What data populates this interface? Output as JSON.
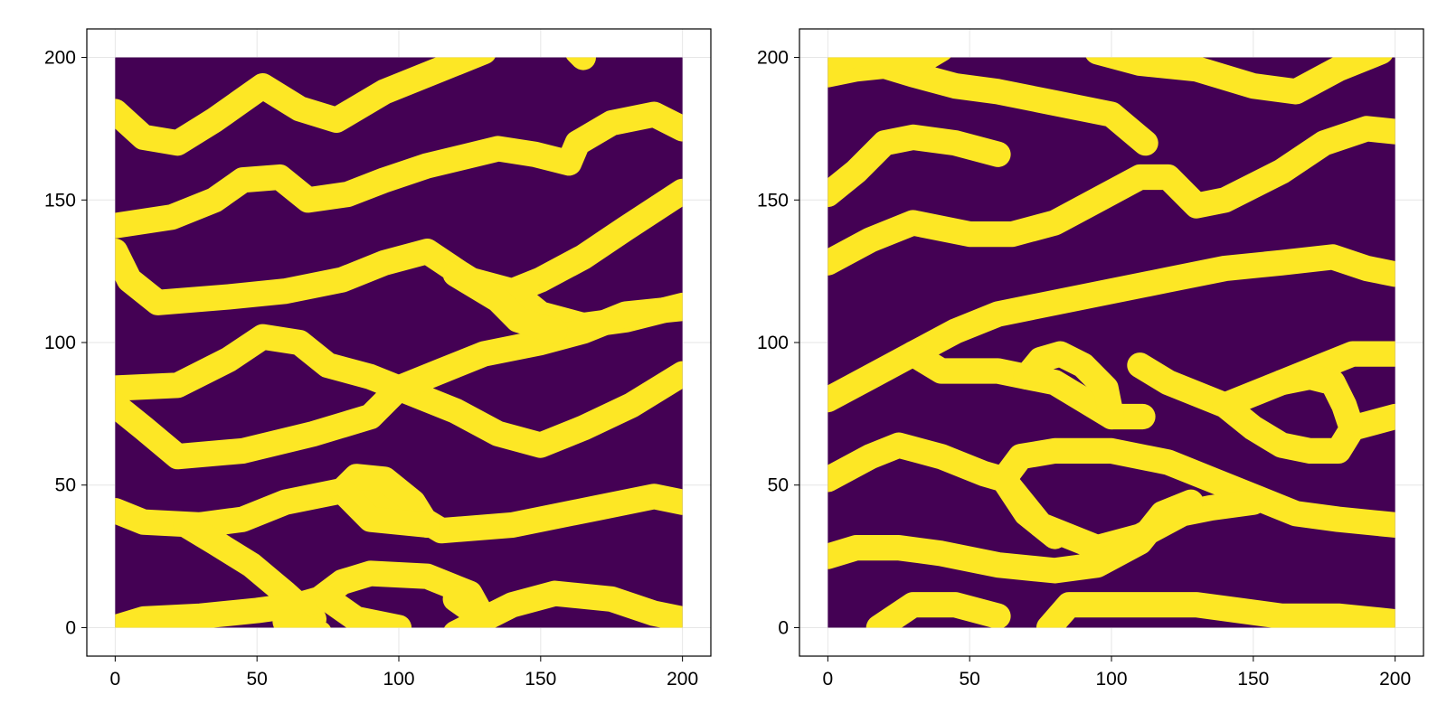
{
  "figure": {
    "background": "#ffffff"
  },
  "colors": {
    "background_facies": "#440154",
    "channel_facies": "#fde725"
  },
  "chart_data": [
    {
      "type": "heatmap",
      "title": "",
      "xlabel": "",
      "ylabel": "",
      "xlim": [
        -10,
        210
      ],
      "ylim": [
        -10,
        210
      ],
      "data_extent": {
        "x": [
          0,
          200
        ],
        "y": [
          0,
          200
        ]
      },
      "xticks": [
        0,
        50,
        100,
        150,
        200
      ],
      "yticks": [
        0,
        50,
        100,
        150,
        200
      ],
      "xtick_labels": [
        "0",
        "50",
        "100",
        "150",
        "200"
      ],
      "ytick_labels": [
        "0",
        "50",
        "100",
        "150",
        "200"
      ],
      "grid": true,
      "values_encoding": "binary: 0 = background (dark purple), 1 = channel (yellow)",
      "channel_width": 9,
      "channels": [
        [
          [
            0,
            181
          ],
          [
            10,
            172
          ],
          [
            22,
            170
          ],
          [
            35,
            178
          ],
          [
            52,
            190
          ],
          [
            65,
            182
          ],
          [
            78,
            178
          ],
          [
            95,
            188
          ],
          [
            115,
            196
          ],
          [
            130,
            202
          ]
        ],
        [
          [
            163,
            202
          ],
          [
            165,
            200
          ]
        ],
        [
          [
            0,
            141
          ],
          [
            20,
            144
          ],
          [
            35,
            150
          ],
          [
            45,
            157
          ],
          [
            58,
            158
          ],
          [
            68,
            150
          ],
          [
            82,
            152
          ],
          [
            95,
            157
          ],
          [
            110,
            162
          ],
          [
            135,
            168
          ],
          [
            148,
            166
          ],
          [
            160,
            163
          ],
          [
            163,
            170
          ],
          [
            175,
            177
          ],
          [
            190,
            180
          ],
          [
            200,
            175
          ]
        ],
        [
          [
            0,
            132
          ],
          [
            5,
            122
          ],
          [
            15,
            114
          ],
          [
            40,
            116
          ],
          [
            60,
            118
          ],
          [
            80,
            122
          ],
          [
            95,
            128
          ],
          [
            110,
            132
          ],
          [
            125,
            122
          ],
          [
            140,
            118
          ],
          [
            150,
            110
          ],
          [
            165,
            106
          ],
          [
            180,
            108
          ],
          [
            200,
            113
          ]
        ],
        [
          [
            0,
            84
          ],
          [
            22,
            85
          ],
          [
            40,
            94
          ],
          [
            52,
            102
          ],
          [
            65,
            100
          ],
          [
            75,
            92
          ],
          [
            90,
            88
          ],
          [
            105,
            82
          ],
          [
            120,
            76
          ],
          [
            135,
            68
          ],
          [
            150,
            64
          ],
          [
            165,
            70
          ],
          [
            182,
            78
          ],
          [
            200,
            89
          ]
        ],
        [
          [
            0,
            78
          ],
          [
            10,
            70
          ],
          [
            22,
            60
          ],
          [
            45,
            62
          ],
          [
            70,
            68
          ],
          [
            90,
            74
          ],
          [
            100,
            84
          ],
          [
            115,
            90
          ],
          [
            130,
            96
          ],
          [
            150,
            100
          ],
          [
            165,
            104
          ],
          [
            180,
            110
          ],
          [
            200,
            112
          ]
        ],
        [
          [
            122,
            124
          ],
          [
            135,
            116
          ],
          [
            150,
            122
          ],
          [
            165,
            130
          ],
          [
            180,
            140
          ],
          [
            200,
            153
          ]
        ],
        [
          [
            120,
            124
          ],
          [
            135,
            115
          ],
          [
            142,
            108
          ],
          [
            155,
            104
          ]
        ],
        [
          [
            0,
            41
          ],
          [
            10,
            37
          ],
          [
            30,
            36
          ],
          [
            45,
            38
          ],
          [
            60,
            44
          ],
          [
            80,
            48
          ],
          [
            95,
            46
          ],
          [
            115,
            34
          ],
          [
            140,
            36
          ],
          [
            170,
            42
          ],
          [
            190,
            46
          ],
          [
            200,
            44
          ]
        ],
        [
          [
            80,
            48
          ],
          [
            85,
            53
          ],
          [
            95,
            52
          ],
          [
            105,
            44
          ],
          [
            110,
            36
          ]
        ],
        [
          [
            80,
            48
          ],
          [
            90,
            38
          ],
          [
            110,
            36
          ]
        ],
        [
          [
            25,
            36
          ],
          [
            35,
            30
          ],
          [
            48,
            22
          ],
          [
            60,
            12
          ],
          [
            70,
            3
          ]
        ],
        [
          [
            0,
            0
          ],
          [
            10,
            3
          ],
          [
            30,
            4
          ],
          [
            50,
            6
          ],
          [
            65,
            8
          ],
          [
            72,
            10
          ],
          [
            80,
            16
          ],
          [
            90,
            19
          ],
          [
            110,
            18
          ],
          [
            125,
            12
          ],
          [
            130,
            3
          ],
          [
            140,
            8
          ],
          [
            155,
            12
          ],
          [
            175,
            10
          ],
          [
            190,
            5
          ],
          [
            200,
            3
          ]
        ],
        [
          [
            60,
            2
          ],
          [
            72,
            -2
          ]
        ],
        [
          [
            75,
            10
          ],
          [
            85,
            3
          ],
          [
            100,
            0
          ]
        ],
        [
          [
            120,
            10
          ],
          [
            130,
            3
          ],
          [
            120,
            -2
          ]
        ]
      ]
    },
    {
      "type": "heatmap",
      "title": "",
      "xlabel": "",
      "ylabel": "",
      "xlim": [
        -10,
        210
      ],
      "ylim": [
        -10,
        210
      ],
      "data_extent": {
        "x": [
          0,
          200
        ],
        "y": [
          0,
          200
        ]
      },
      "xticks": [
        0,
        50,
        100,
        150,
        200
      ],
      "yticks": [
        0,
        50,
        100,
        150,
        200
      ],
      "xtick_labels": [
        "0",
        "50",
        "100",
        "150",
        "200"
      ],
      "ytick_labels": [
        "0",
        "50",
        "100",
        "150",
        "200"
      ],
      "grid": true,
      "values_encoding": "binary: 0 = background (dark purple), 1 = channel (yellow)",
      "channel_width": 9,
      "channels": [
        [
          [
            0,
            194
          ],
          [
            10,
            196
          ],
          [
            20,
            197
          ],
          [
            30,
            194
          ],
          [
            45,
            190
          ],
          [
            60,
            188
          ],
          [
            80,
            184
          ],
          [
            100,
            180
          ],
          [
            112,
            170
          ]
        ],
        [
          [
            0,
            202
          ],
          [
            5,
            200
          ],
          [
            20,
            203
          ],
          [
            25,
            196
          ],
          [
            35,
            200
          ],
          [
            40,
            203
          ]
        ],
        [
          [
            95,
            202
          ],
          [
            110,
            198
          ],
          [
            130,
            196
          ],
          [
            150,
            190
          ],
          [
            165,
            188
          ],
          [
            180,
            196
          ],
          [
            195,
            202
          ]
        ],
        [
          [
            0,
            152
          ],
          [
            10,
            160
          ],
          [
            20,
            170
          ],
          [
            30,
            172
          ],
          [
            45,
            170
          ],
          [
            60,
            166
          ]
        ],
        [
          [
            0,
            128
          ],
          [
            15,
            136
          ],
          [
            30,
            142
          ],
          [
            50,
            138
          ],
          [
            65,
            138
          ],
          [
            80,
            142
          ],
          [
            95,
            150
          ],
          [
            110,
            158
          ],
          [
            120,
            158
          ],
          [
            130,
            148
          ],
          [
            140,
            150
          ],
          [
            160,
            160
          ],
          [
            175,
            170
          ],
          [
            190,
            175
          ],
          [
            200,
            174
          ]
        ],
        [
          [
            0,
            80
          ],
          [
            15,
            88
          ],
          [
            30,
            96
          ],
          [
            45,
            104
          ],
          [
            60,
            110
          ],
          [
            80,
            114
          ],
          [
            100,
            118
          ],
          [
            120,
            122
          ],
          [
            140,
            126
          ],
          [
            160,
            128
          ],
          [
            178,
            130
          ],
          [
            190,
            126
          ],
          [
            200,
            124
          ]
        ],
        [
          [
            30,
            96
          ],
          [
            40,
            90
          ],
          [
            60,
            90
          ],
          [
            70,
            88
          ],
          [
            80,
            86
          ],
          [
            90,
            80
          ],
          [
            100,
            74
          ],
          [
            111,
            74
          ]
        ],
        [
          [
            70,
            88
          ],
          [
            75,
            94
          ],
          [
            82,
            96
          ],
          [
            90,
            92
          ],
          [
            98,
            84
          ],
          [
            100,
            74
          ]
        ],
        [
          [
            110,
            92
          ],
          [
            120,
            86
          ],
          [
            130,
            82
          ],
          [
            140,
            78
          ],
          [
            150,
            70
          ],
          [
            160,
            64
          ],
          [
            170,
            62
          ],
          [
            180,
            62
          ],
          [
            185,
            70
          ],
          [
            200,
            74
          ]
        ],
        [
          [
            140,
            78
          ],
          [
            150,
            82
          ],
          [
            160,
            86
          ],
          [
            175,
            92
          ],
          [
            185,
            96
          ],
          [
            200,
            96
          ]
        ],
        [
          [
            160,
            86
          ],
          [
            170,
            88
          ],
          [
            178,
            86
          ],
          [
            182,
            78
          ],
          [
            184,
            72
          ]
        ],
        [
          [
            0,
            52
          ],
          [
            15,
            60
          ],
          [
            25,
            64
          ],
          [
            40,
            60
          ],
          [
            55,
            54
          ],
          [
            62,
            52
          ],
          [
            68,
            60
          ],
          [
            80,
            62
          ],
          [
            100,
            62
          ],
          [
            120,
            58
          ],
          [
            135,
            52
          ],
          [
            150,
            46
          ],
          [
            165,
            40
          ],
          [
            180,
            38
          ],
          [
            200,
            36
          ]
        ],
        [
          [
            62,
            52
          ],
          [
            70,
            40
          ],
          [
            80,
            32
          ]
        ],
        [
          [
            62,
            52
          ],
          [
            75,
            36
          ],
          [
            95,
            28
          ],
          [
            110,
            32
          ],
          [
            125,
            40
          ],
          [
            135,
            42
          ],
          [
            150,
            44
          ]
        ],
        [
          [
            0,
            25
          ],
          [
            10,
            28
          ],
          [
            25,
            28
          ],
          [
            40,
            26
          ],
          [
            60,
            22
          ],
          [
            80,
            20
          ],
          [
            95,
            22
          ],
          [
            110,
            30
          ],
          [
            118,
            40
          ],
          [
            128,
            44
          ]
        ],
        [
          [
            18,
            0
          ],
          [
            30,
            8
          ],
          [
            45,
            8
          ],
          [
            60,
            4
          ]
        ],
        [
          [
            78,
            0
          ],
          [
            85,
            8
          ],
          [
            100,
            8
          ],
          [
            115,
            8
          ],
          [
            130,
            8
          ],
          [
            145,
            6
          ],
          [
            160,
            4
          ],
          [
            180,
            4
          ],
          [
            200,
            2
          ]
        ]
      ]
    }
  ]
}
